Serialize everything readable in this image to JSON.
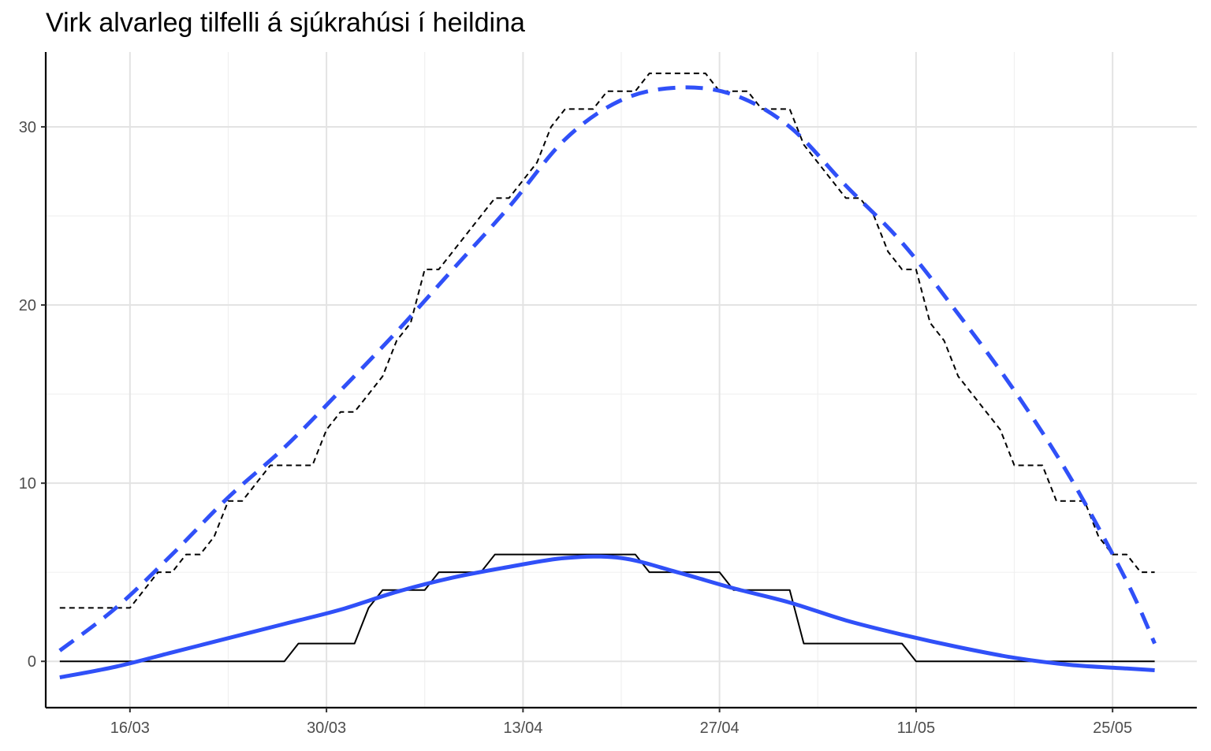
{
  "chart_data": {
    "type": "line",
    "title": "Virk alvarleg tilfelli á sjúkrahúsi í heildina",
    "xlabel": "",
    "ylabel": "",
    "x_start_date": "2020-03-11",
    "x_end_date": "2020-05-28",
    "xlim": [
      "2020-03-10",
      "2020-05-31"
    ],
    "ylim": [
      -2.6,
      34.2
    ],
    "x_ticks": [
      {
        "date": "2020-03-16",
        "label": "16/03"
      },
      {
        "date": "2020-03-30",
        "label": "30/03"
      },
      {
        "date": "2020-04-13",
        "label": "13/04"
      },
      {
        "date": "2020-04-27",
        "label": "27/04"
      },
      {
        "date": "2020-05-11",
        "label": "11/05"
      },
      {
        "date": "2020-05-25",
        "label": "25/05"
      }
    ],
    "y_ticks": [
      0,
      10,
      20,
      30
    ],
    "grid": true,
    "legend": "none",
    "series": [
      {
        "style": "black-dashed-step",
        "color": "#000000",
        "points": [
          [
            "2020-03-11",
            3
          ],
          [
            "2020-03-12",
            3
          ],
          [
            "2020-03-13",
            3
          ],
          [
            "2020-03-14",
            3
          ],
          [
            "2020-03-15",
            3
          ],
          [
            "2020-03-16",
            3
          ],
          [
            "2020-03-17",
            4
          ],
          [
            "2020-03-18",
            5
          ],
          [
            "2020-03-19",
            5
          ],
          [
            "2020-03-20",
            6
          ],
          [
            "2020-03-21",
            6
          ],
          [
            "2020-03-22",
            7
          ],
          [
            "2020-03-23",
            9
          ],
          [
            "2020-03-24",
            9
          ],
          [
            "2020-03-25",
            10
          ],
          [
            "2020-03-26",
            11
          ],
          [
            "2020-03-27",
            11
          ],
          [
            "2020-03-28",
            11
          ],
          [
            "2020-03-29",
            11
          ],
          [
            "2020-03-30",
            13
          ],
          [
            "2020-03-31",
            14
          ],
          [
            "2020-04-01",
            14
          ],
          [
            "2020-04-02",
            15
          ],
          [
            "2020-04-03",
            16
          ],
          [
            "2020-04-04",
            18
          ],
          [
            "2020-04-05",
            19
          ],
          [
            "2020-04-06",
            22
          ],
          [
            "2020-04-07",
            22
          ],
          [
            "2020-04-08",
            23
          ],
          [
            "2020-04-09",
            24
          ],
          [
            "2020-04-10",
            25
          ],
          [
            "2020-04-11",
            26
          ],
          [
            "2020-04-12",
            26
          ],
          [
            "2020-04-13",
            27
          ],
          [
            "2020-04-14",
            28
          ],
          [
            "2020-04-15",
            30
          ],
          [
            "2020-04-16",
            31
          ],
          [
            "2020-04-17",
            31
          ],
          [
            "2020-04-18",
            31
          ],
          [
            "2020-04-19",
            32
          ],
          [
            "2020-04-20",
            32
          ],
          [
            "2020-04-21",
            32
          ],
          [
            "2020-04-22",
            33
          ],
          [
            "2020-04-23",
            33
          ],
          [
            "2020-04-24",
            33
          ],
          [
            "2020-04-25",
            33
          ],
          [
            "2020-04-26",
            33
          ],
          [
            "2020-04-27",
            32
          ],
          [
            "2020-04-28",
            32
          ],
          [
            "2020-04-29",
            32
          ],
          [
            "2020-04-30",
            31
          ],
          [
            "2020-05-01",
            31
          ],
          [
            "2020-05-02",
            31
          ],
          [
            "2020-05-03",
            29
          ],
          [
            "2020-05-04",
            28
          ],
          [
            "2020-05-05",
            27
          ],
          [
            "2020-05-06",
            26
          ],
          [
            "2020-05-07",
            26
          ],
          [
            "2020-05-08",
            25
          ],
          [
            "2020-05-09",
            23
          ],
          [
            "2020-05-10",
            22
          ],
          [
            "2020-05-11",
            22
          ],
          [
            "2020-05-12",
            19
          ],
          [
            "2020-05-13",
            18
          ],
          [
            "2020-05-14",
            16
          ],
          [
            "2020-05-15",
            15
          ],
          [
            "2020-05-16",
            14
          ],
          [
            "2020-05-17",
            13
          ],
          [
            "2020-05-18",
            11
          ],
          [
            "2020-05-19",
            11
          ],
          [
            "2020-05-20",
            11
          ],
          [
            "2020-05-21",
            9
          ],
          [
            "2020-05-22",
            9
          ],
          [
            "2020-05-23",
            9
          ],
          [
            "2020-05-24",
            7
          ],
          [
            "2020-05-25",
            6
          ],
          [
            "2020-05-26",
            6
          ],
          [
            "2020-05-27",
            5
          ],
          [
            "2020-05-28",
            5
          ]
        ]
      },
      {
        "style": "black-solid-step",
        "color": "#000000",
        "points": [
          [
            "2020-03-11",
            0
          ],
          [
            "2020-03-27",
            0
          ],
          [
            "2020-03-28",
            1
          ],
          [
            "2020-03-31",
            1
          ],
          [
            "2020-04-01",
            1
          ],
          [
            "2020-04-02",
            3
          ],
          [
            "2020-04-03",
            4
          ],
          [
            "2020-04-06",
            4
          ],
          [
            "2020-04-07",
            5
          ],
          [
            "2020-04-10",
            5
          ],
          [
            "2020-04-11",
            6
          ],
          [
            "2020-04-20",
            6
          ],
          [
            "2020-04-21",
            6
          ],
          [
            "2020-04-22",
            5
          ],
          [
            "2020-04-26",
            5
          ],
          [
            "2020-04-27",
            5
          ],
          [
            "2020-04-28",
            4
          ],
          [
            "2020-05-02",
            4
          ],
          [
            "2020-05-03",
            1
          ],
          [
            "2020-05-10",
            1
          ],
          [
            "2020-05-11",
            0
          ],
          [
            "2020-05-28",
            0
          ]
        ]
      },
      {
        "style": "blue-dashed-smooth",
        "color": "#3050f8",
        "points": [
          [
            "2020-03-11",
            0.6
          ],
          [
            "2020-03-15",
            3.0
          ],
          [
            "2020-03-19",
            6.0
          ],
          [
            "2020-03-23",
            9.2
          ],
          [
            "2020-03-27",
            12.0
          ],
          [
            "2020-03-31",
            15.2
          ],
          [
            "2020-04-04",
            18.5
          ],
          [
            "2020-04-08",
            22.0
          ],
          [
            "2020-04-12",
            25.5
          ],
          [
            "2020-04-16",
            29.3
          ],
          [
            "2020-04-20",
            31.5
          ],
          [
            "2020-04-24",
            32.2
          ],
          [
            "2020-04-28",
            31.8
          ],
          [
            "2020-05-02",
            30.0
          ],
          [
            "2020-05-06",
            26.7
          ],
          [
            "2020-05-10",
            23.5
          ],
          [
            "2020-05-14",
            19.5
          ],
          [
            "2020-05-18",
            15.2
          ],
          [
            "2020-05-22",
            10.3
          ],
          [
            "2020-05-26",
            4.5
          ],
          [
            "2020-05-28",
            1.0
          ]
        ]
      },
      {
        "style": "blue-solid-smooth",
        "color": "#3050f8",
        "points": [
          [
            "2020-03-11",
            -0.9
          ],
          [
            "2020-03-15",
            -0.3
          ],
          [
            "2020-03-19",
            0.5
          ],
          [
            "2020-03-23",
            1.3
          ],
          [
            "2020-03-27",
            2.1
          ],
          [
            "2020-03-31",
            2.9
          ],
          [
            "2020-04-04",
            3.9
          ],
          [
            "2020-04-08",
            4.7
          ],
          [
            "2020-04-12",
            5.3
          ],
          [
            "2020-04-16",
            5.8
          ],
          [
            "2020-04-20",
            5.8
          ],
          [
            "2020-04-24",
            5.0
          ],
          [
            "2020-04-28",
            4.1
          ],
          [
            "2020-05-02",
            3.3
          ],
          [
            "2020-05-06",
            2.3
          ],
          [
            "2020-05-10",
            1.5
          ],
          [
            "2020-05-14",
            0.8
          ],
          [
            "2020-05-18",
            0.2
          ],
          [
            "2020-05-22",
            -0.2
          ],
          [
            "2020-05-26",
            -0.4
          ],
          [
            "2020-05-28",
            -0.5
          ]
        ]
      }
    ]
  }
}
